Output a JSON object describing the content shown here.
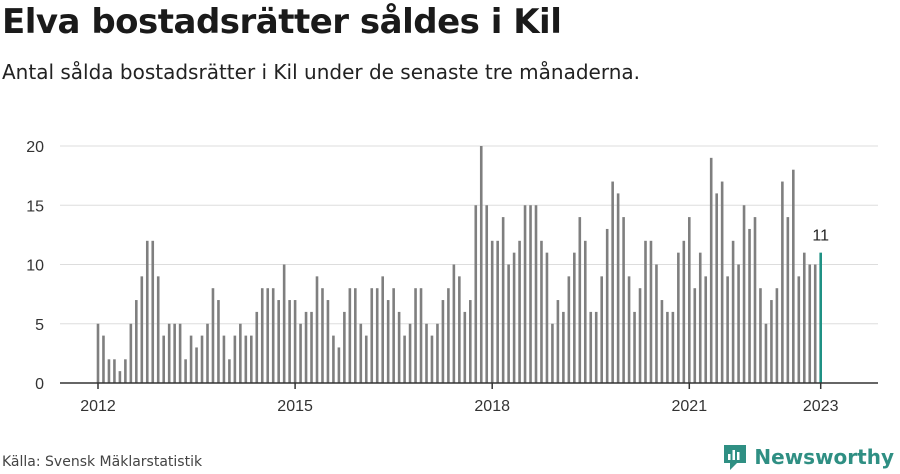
{
  "title": "Elva bostadsrätter såldes i Kil",
  "subtitle": "Antal sålda bostadsrätter i Kil under de senaste tre månaderna.",
  "source": "Källa: Svensk Mäklarstatistik",
  "brand": {
    "name": "Newsworthy",
    "icon": "newsworthy-logo-icon"
  },
  "colors": {
    "bar": "#7f7f7f",
    "highlight": "#1f9184",
    "grid": "#dddddd",
    "axis": "#333333",
    "brand": "#2f8f83"
  },
  "chart_data": {
    "type": "bar",
    "x_start": "2012-01",
    "x_ticks": [
      "2012",
      "2015",
      "2018",
      "2021",
      "2023"
    ],
    "y_ticks": [
      "0",
      "5",
      "10",
      "15",
      "20"
    ],
    "ylim": [
      0,
      21
    ],
    "grid": true,
    "values": [
      5,
      4,
      2,
      2,
      1,
      2,
      5,
      7,
      9,
      12,
      12,
      9,
      4,
      5,
      5,
      5,
      2,
      4,
      3,
      4,
      5,
      8,
      7,
      4,
      2,
      4,
      5,
      4,
      4,
      6,
      8,
      8,
      8,
      7,
      10,
      7,
      7,
      5,
      6,
      6,
      9,
      8,
      7,
      4,
      3,
      6,
      8,
      8,
      5,
      4,
      8,
      8,
      9,
      7,
      8,
      6,
      4,
      5,
      8,
      8,
      5,
      4,
      5,
      7,
      8,
      10,
      9,
      6,
      7,
      15,
      20,
      15,
      12,
      12,
      14,
      10,
      11,
      12,
      15,
      15,
      15,
      12,
      11,
      5,
      7,
      6,
      9,
      11,
      14,
      12,
      6,
      6,
      9,
      13,
      17,
      16,
      14,
      9,
      6,
      8,
      12,
      12,
      10,
      7,
      6,
      6,
      11,
      12,
      14,
      8,
      11,
      9,
      19,
      16,
      17,
      9,
      12,
      10,
      15,
      13,
      14,
      8,
      5,
      7,
      8,
      17,
      14,
      18,
      9,
      11,
      10,
      10,
      11
    ],
    "highlight": {
      "label": "11",
      "value": 11
    }
  }
}
